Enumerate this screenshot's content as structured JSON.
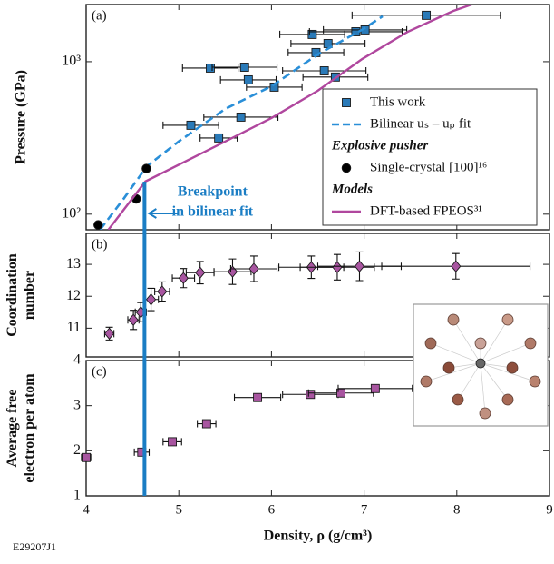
{
  "figure_id": "E29207J1",
  "chart_data": [
    {
      "type": "scatter",
      "panel_label": "(a)",
      "ylabel": [
        "Pressure (GPa)"
      ],
      "xlim": [
        4,
        9
      ],
      "xticks": [
        4,
        5,
        6,
        7,
        8,
        9
      ],
      "ylim": [
        79,
        2370
      ],
      "log_y": true,
      "yticks": [
        {
          "value": 100,
          "label": "10²"
        },
        {
          "value": 1000,
          "label": "10³"
        }
      ],
      "legend": "lower right",
      "breakpoint_x": 4.63,
      "breakpoint_color": "#1a7dc4",
      "annotation": [
        "Breakpoint",
        "in bilinear fit"
      ],
      "series": [
        {
          "name": "This work",
          "type": "scatter",
          "marker": "square",
          "color": "#2a7ab8",
          "x": [
            5.34,
            5.71,
            5.75,
            6.03,
            6.57,
            6.69,
            6.44,
            6.61,
            6.48,
            6.91,
            7.01,
            7.67,
            5.13,
            5.43,
            5.67
          ],
          "y": [
            908,
            920,
            760,
            681,
            871,
            793,
            1509,
            1315,
            1147,
            1571,
            1616,
            2014,
            383,
            316,
            433
          ],
          "xerr": [
            0.3,
            0.35,
            0.3,
            0.3,
            0.45,
            0.35,
            0.35,
            0.4,
            0.3,
            0.5,
            0.45,
            0.8,
            0.3,
            0.2,
            0.4
          ]
        },
        {
          "name": "Bilinear uₛ – uₚ fit",
          "type": "line",
          "dash": true,
          "color": "#2a8fd8",
          "x": [
            4.15,
            4.4,
            4.6,
            4.65,
            5.0,
            5.5,
            6.0,
            6.5,
            7.0,
            7.2
          ],
          "y": [
            79,
            125,
            185,
            205,
            300,
            490,
            690,
            1116,
            1650,
            1985
          ]
        },
        {
          "name": "Single-crystal [100]¹⁶",
          "group": "Explosive pusher",
          "type": "scatter",
          "marker": "circle",
          "color": "#000000",
          "x": [
            4.65,
            4.54,
            4.13
          ],
          "y": [
            199,
            126,
            85
          ]
        },
        {
          "name": "DFT-based FPEOS³¹",
          "group": "Models",
          "type": "line",
          "color": "#b0479e",
          "x": [
            4.24,
            4.64,
            5.42,
            6.0,
            6.5,
            6.98,
            7.47,
            7.96,
            8.16
          ],
          "y": [
            79,
            164,
            283,
            427,
            645,
            1042,
            1570,
            2150,
            2370
          ]
        }
      ]
    },
    {
      "type": "scatter",
      "panel_label": "(b)",
      "ylabel": [
        "Coordination",
        "number"
      ],
      "xlim": [
        4,
        9
      ],
      "xticks": [
        4,
        5,
        6,
        7,
        8,
        9
      ],
      "ylim": [
        10.1,
        13.97
      ],
      "yticks": [
        11,
        12,
        13
      ],
      "series": [
        {
          "type": "scatter",
          "marker": "diamond",
          "color": "#a855a0",
          "x": [
            4.25,
            4.51,
            4.59,
            4.7,
            4.82,
            5.05,
            5.23,
            5.58,
            5.81,
            6.43,
            6.71,
            6.95,
            7.99
          ],
          "y": [
            10.83,
            11.26,
            11.5,
            11.9,
            12.15,
            12.57,
            12.74,
            12.77,
            12.86,
            12.91,
            12.91,
            12.94,
            12.94
          ],
          "xerr": [
            0.05,
            0.06,
            0.06,
            0.08,
            0.08,
            0.12,
            0.15,
            0.2,
            0.25,
            0.35,
            0.4,
            0.45,
            0.8
          ],
          "yerr": [
            0.2,
            0.3,
            0.3,
            0.35,
            0.3,
            0.3,
            0.35,
            0.4,
            0.4,
            0.35,
            0.4,
            0.45,
            0.4
          ]
        }
      ]
    },
    {
      "type": "scatter",
      "panel_label": "(c)",
      "ylabel": [
        "Average free",
        "electron per atom"
      ],
      "xlabel": "Density, ρ (g/cm³)",
      "xlim": [
        4,
        9
      ],
      "xticks": [
        4,
        5,
        6,
        7,
        8,
        9
      ],
      "ylim": [
        1,
        4
      ],
      "yticks": [
        1,
        2,
        3,
        4
      ],
      "series": [
        {
          "type": "scatter",
          "marker": "square",
          "color": "#a855a0",
          "x": [
            4.0,
            4.6,
            4.93,
            5.3,
            5.85,
            6.42,
            6.75,
            7.12
          ],
          "y": [
            1.85,
            1.97,
            2.2,
            2.6,
            3.18,
            3.25,
            3.28,
            3.38
          ],
          "xerr": [
            0.05,
            0.08,
            0.1,
            0.1,
            0.25,
            0.3,
            0.35,
            0.4
          ]
        }
      ]
    }
  ]
}
